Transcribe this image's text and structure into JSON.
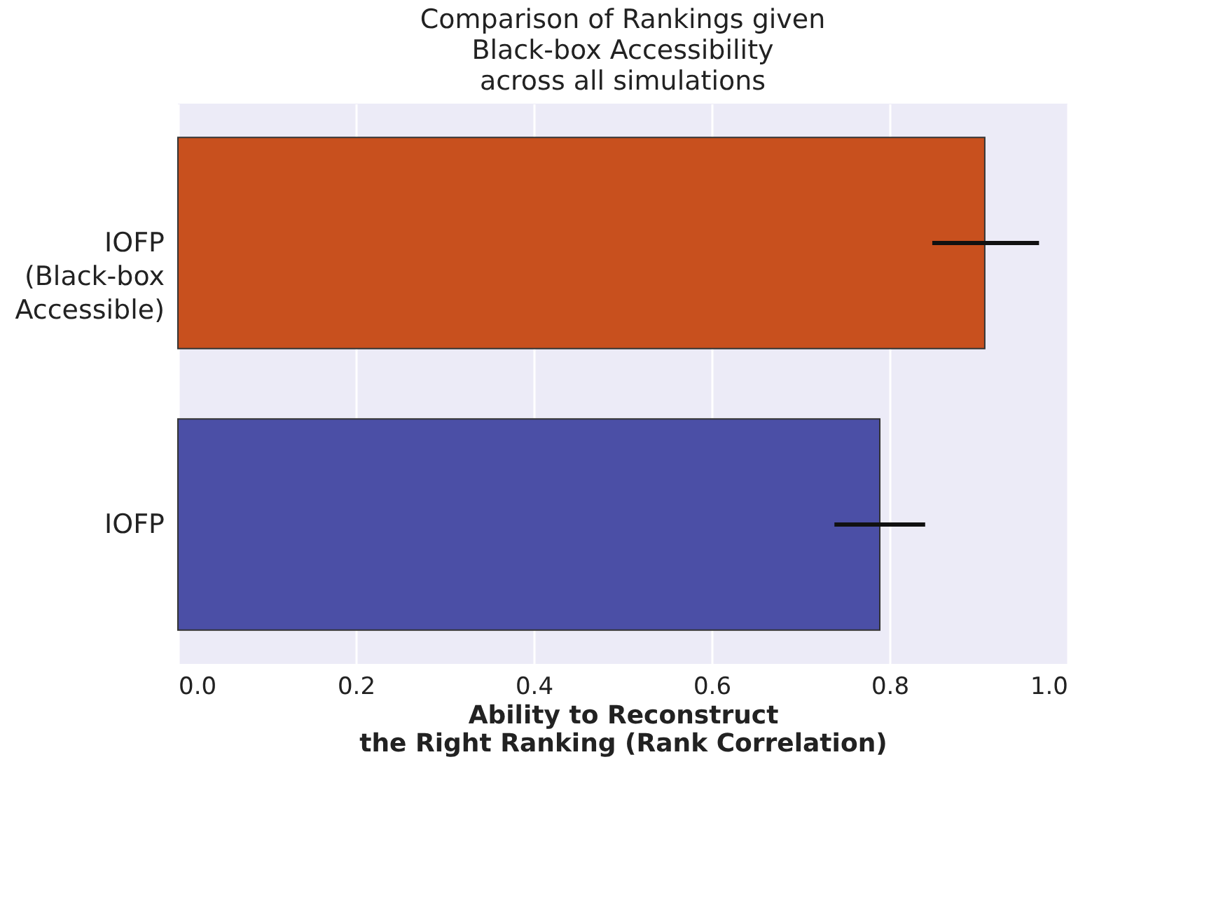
{
  "chart_data": {
    "type": "bar",
    "orientation": "horizontal",
    "title": "Comparison of Rankings given\nBlack-box Accessibility\nacross all simulations",
    "xlabel": "Ability to Reconstruct\nthe Right Ranking (Rank Correlation)",
    "categories": [
      "IOFP\n(Black-box\nAccessible)",
      "IOFP"
    ],
    "values": [
      0.907,
      0.789
    ],
    "colors": [
      "#c8501e",
      "#4b4fa6"
    ],
    "errors": [
      [
        0.848,
        0.968
      ],
      [
        0.738,
        0.84
      ]
    ],
    "xlim": [
      0,
      1.0
    ],
    "xticks": [
      {
        "value": 0,
        "label": "0.0"
      },
      {
        "value": 0.2,
        "label": "0.2"
      },
      {
        "value": 0.4,
        "label": "0.4"
      },
      {
        "value": 0.6,
        "label": "0.6"
      },
      {
        "value": 0.8,
        "label": "0.8"
      },
      {
        "value": 1.0,
        "label": "1.0"
      }
    ],
    "grid": "x"
  }
}
